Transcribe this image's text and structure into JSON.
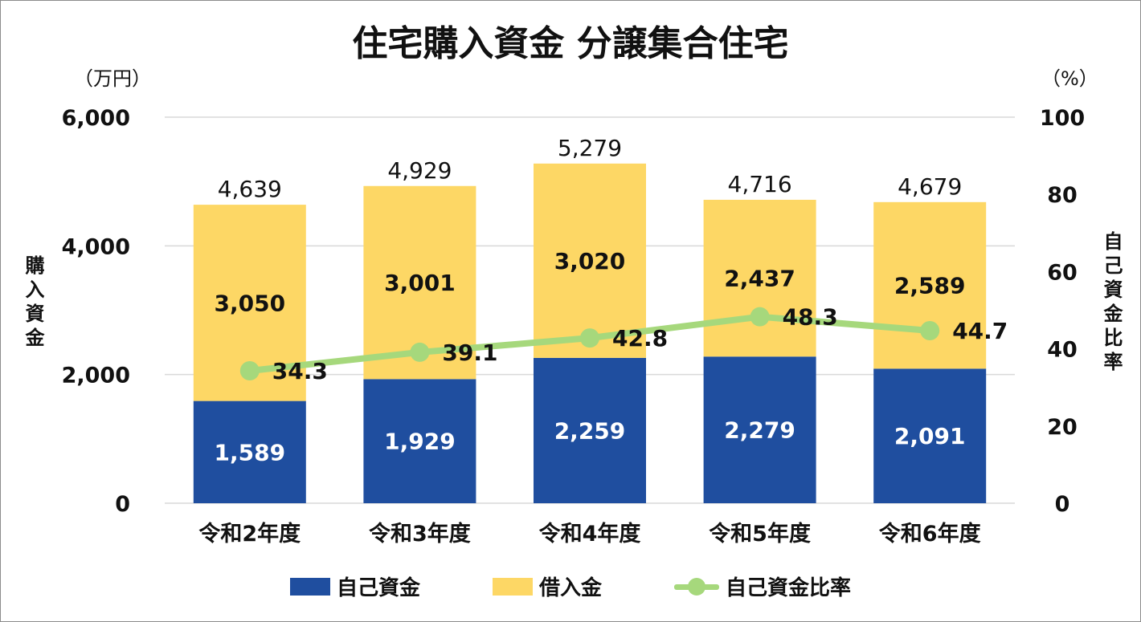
{
  "chart_data": {
    "type": "bar",
    "stacked": true,
    "title": "住宅購入資金 分譲集合住宅",
    "categories": [
      "令和2年度",
      "令和3年度",
      "令和4年度",
      "令和5年度",
      "令和6年度"
    ],
    "series": [
      {
        "name": "自己資金",
        "type": "bar",
        "axis": "left",
        "color": "#1f4e9f",
        "values": [
          1589,
          1929,
          2259,
          2279,
          2091
        ]
      },
      {
        "name": "借入金",
        "type": "bar",
        "axis": "left",
        "color": "#fdd765",
        "values": [
          3050,
          3001,
          3020,
          2437,
          2589
        ]
      },
      {
        "name": "自己資金比率",
        "type": "line",
        "axis": "right",
        "color": "#a6d87c",
        "values": [
          34.3,
          39.1,
          42.8,
          48.3,
          44.7
        ]
      }
    ],
    "totals": [
      4639,
      4929,
      5279,
      4716,
      4679
    ],
    "ylabel": "購入資金",
    "ylabel_right": "自己資金比率",
    "y_unit": "（万円）",
    "y_right_unit": "（%）",
    "ylim": [
      0,
      6000
    ],
    "y_ticks": [
      0,
      2000,
      4000,
      6000
    ],
    "ylim_right": [
      0,
      100
    ],
    "y_right_ticks": [
      0,
      20,
      40,
      60,
      80,
      100
    ],
    "grid": true,
    "legend_position": "bottom"
  }
}
